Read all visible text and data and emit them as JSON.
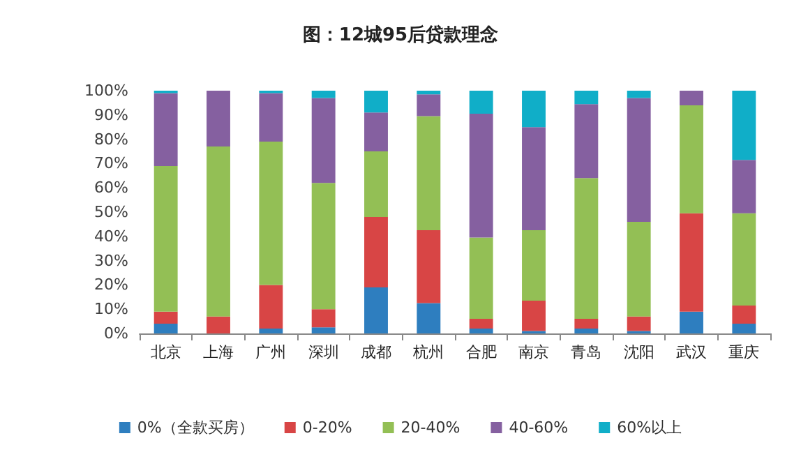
{
  "chart_data": {
    "type": "bar",
    "title": "图：12城95后贷款理念",
    "stacked": true,
    "categories": [
      "北京",
      "上海",
      "广州",
      "深圳",
      "成都",
      "杭州",
      "合肥",
      "南京",
      "青岛",
      "沈阳",
      "武汉",
      "重庆"
    ],
    "series": [
      {
        "name": "0%（全款买房）",
        "color": "#2e7ebf",
        "values": [
          4,
          0,
          2,
          2.5,
          19,
          12.5,
          2,
          1,
          2,
          1,
          9,
          4
        ]
      },
      {
        "name": "0-20%",
        "color": "#d84545",
        "values": [
          5,
          7,
          18,
          7.5,
          29,
          30,
          4,
          12.5,
          4,
          6,
          40.5,
          7.5
        ]
      },
      {
        "name": "20-40%",
        "color": "#93bf55",
        "values": [
          60,
          70,
          59,
          52,
          27,
          47,
          33.5,
          29,
          58,
          39,
          44.5,
          38
        ]
      },
      {
        "name": "40-60%",
        "color": "#8560a0",
        "values": [
          30,
          23,
          20,
          35,
          16,
          9,
          51,
          42.5,
          30.5,
          51,
          6,
          22
        ]
      },
      {
        "name": "60%以上",
        "color": "#10aec8",
        "values": [
          1,
          0,
          1,
          3,
          9,
          1.5,
          9.5,
          15,
          5.5,
          3,
          0,
          28.5
        ]
      }
    ],
    "ylim": [
      0,
      100
    ],
    "yticks": [
      {
        "value": 0,
        "label": "0%"
      },
      {
        "value": 10,
        "label": "10%"
      },
      {
        "value": 20,
        "label": "20%"
      },
      {
        "value": 30,
        "label": "30%"
      },
      {
        "value": 40,
        "label": "40%"
      },
      {
        "value": 50,
        "label": "50%"
      },
      {
        "value": 60,
        "label": "60%"
      },
      {
        "value": 70,
        "label": "70%"
      },
      {
        "value": 80,
        "label": "80%"
      },
      {
        "value": 90,
        "label": "90%"
      },
      {
        "value": 100,
        "label": "100%"
      }
    ],
    "legend": "bottom",
    "grid": false
  }
}
